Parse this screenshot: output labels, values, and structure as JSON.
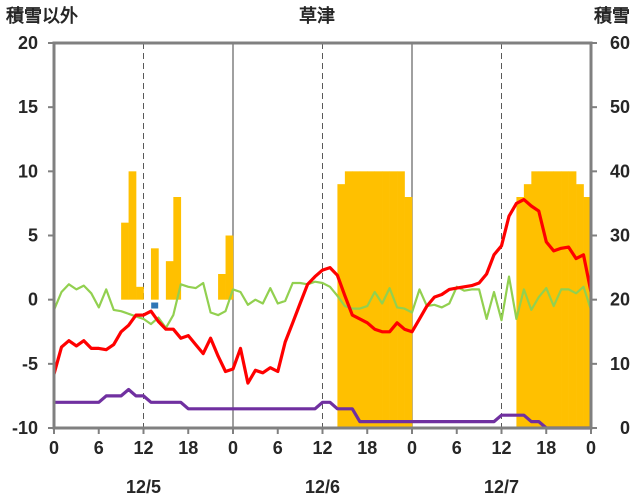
{
  "chart_data": {
    "type": "bar+line",
    "title": "草津",
    "left_axis_label": "積雪以外",
    "right_axis_label": "積雪",
    "ylim_left": [
      -10,
      20
    ],
    "yticks_left": [
      "20",
      "15",
      "10",
      "5",
      "0",
      "-5",
      "-10"
    ],
    "ylim_right": [
      0,
      60
    ],
    "yticks_right": [
      "60",
      "50",
      "40",
      "30",
      "20",
      "10",
      "0"
    ],
    "xlim_hours": [
      0,
      72
    ],
    "xtick_labels": [
      "0",
      "6",
      "12",
      "18",
      "0",
      "6",
      "12",
      "18",
      "0",
      "6",
      "12",
      "18",
      "0"
    ],
    "day_labels": [
      "12/5",
      "12/6",
      "12/7"
    ],
    "grid": "dashed vertical at 12h; solid day separators",
    "colors": {
      "snow_depth_bars": "#ffc000",
      "red_series": "#ff0000",
      "green_series": "#92d050",
      "purple_series": "#7030a0",
      "blue_marker": "#2e75b6",
      "frame": "#808080"
    },
    "series": [
      {
        "type": "bar",
        "axis": "left",
        "hours": [
          9.5,
          10.5,
          11.5,
          13.5,
          14.5,
          15.5,
          16.5,
          22.5,
          23.5,
          24.5,
          25.5,
          26.5,
          27.5,
          28.5,
          29.5,
          30.5,
          31.5,
          32.5,
          33.5,
          34.5,
          35.5,
          36.5,
          37.5,
          38.5,
          39.5,
          40.5,
          41.5,
          42.5,
          43.5,
          44.5,
          45.5,
          46.5,
          47.5,
          48.5,
          49.5,
          50.5,
          51.5,
          52.5,
          53.5,
          54.5,
          55.5,
          56.5,
          57.5,
          58.5,
          59.5,
          60.5,
          61.5,
          62.5,
          63.5,
          64.5,
          65.5,
          66.5,
          67.5
        ],
        "values": [
          6,
          10,
          1,
          4,
          0,
          3,
          8,
          2,
          5,
          0,
          0,
          0,
          0,
          0,
          0,
          0,
          0,
          0,
          0,
          0,
          0,
          0,
          0,
          0,
          0,
          0,
          0,
          0,
          0,
          0,
          0,
          0,
          0,
          0,
          0,
          0,
          0,
          0,
          0,
          0,
          0,
          0,
          0,
          0,
          0,
          0,
          0,
          0,
          0,
          0,
          0,
          0,
          0
        ]
      },
      {
        "type": "bar",
        "axis": "right",
        "hours": [
          38.5,
          39.5,
          40.5,
          41.5,
          42.5,
          43.5,
          44.5,
          45.5,
          46.5,
          47.5,
          62.5,
          63.5,
          64.5,
          65.5,
          66.5,
          67.5,
          68.5,
          69.5,
          70.5,
          71.5
        ],
        "values": [
          38,
          40,
          40,
          40,
          40,
          40,
          40,
          40,
          40,
          36,
          36,
          38,
          40,
          40,
          40,
          40,
          40,
          40,
          38,
          36
        ]
      },
      {
        "type": "line",
        "color": "red",
        "hours": [
          0,
          1,
          2,
          3,
          4,
          5,
          6,
          7,
          8,
          9,
          10,
          11,
          12,
          13,
          14,
          15,
          16,
          17,
          18,
          19,
          20,
          21,
          22,
          23,
          24,
          25,
          26,
          27,
          28,
          29,
          30,
          31,
          32,
          33,
          34,
          35,
          36,
          37,
          38,
          39,
          40,
          41,
          42,
          43,
          44,
          45,
          46,
          47,
          48,
          49,
          50,
          51,
          52,
          53,
          54,
          55,
          56,
          57,
          58,
          59,
          60,
          61,
          62,
          63,
          64,
          65,
          66,
          67,
          68,
          69,
          70,
          71,
          72
        ],
        "values": [
          -5.8,
          -3.7,
          -3.2,
          -3.6,
          -3.2,
          -3.8,
          -3.8,
          -3.9,
          -3.5,
          -2.5,
          -2.0,
          -1.2,
          -1.2,
          -0.9,
          -1.7,
          -2.3,
          -2.3,
          -3.0,
          -2.8,
          -3.5,
          -4.2,
          -3.0,
          -4.4,
          -5.6,
          -5.4,
          -3.8,
          -6.5,
          -5.5,
          -5.7,
          -5.3,
          -5.6,
          -3.3,
          -1.8,
          -0.3,
          1.2,
          1.8,
          2.3,
          2.5,
          1.9,
          0.3,
          -1.2,
          -1.5,
          -1.8,
          -2.3,
          -2.5,
          -2.5,
          -1.8,
          -2.3,
          -2.5,
          -1.5,
          -0.5,
          0.2,
          0.4,
          0.8,
          0.9,
          1.0,
          1.1,
          1.3,
          2.0,
          3.5,
          4.2,
          6.5,
          7.5,
          7.8,
          7.3,
          6.9,
          4.5,
          3.8,
          4.0,
          4.1,
          3.2,
          3.5,
          0.6
        ]
      },
      {
        "type": "line",
        "color": "green",
        "hours": [
          0,
          1,
          2,
          3,
          4,
          5,
          6,
          7,
          8,
          9,
          10,
          11,
          12,
          13,
          14,
          15,
          16,
          17,
          18,
          19,
          20,
          21,
          22,
          23,
          24,
          25,
          26,
          27,
          28,
          29,
          30,
          31,
          32,
          33,
          34,
          35,
          36,
          37,
          38,
          39,
          40,
          41,
          42,
          43,
          44,
          45,
          46,
          47,
          48,
          49,
          50,
          51,
          52,
          53,
          54,
          55,
          56,
          57,
          58,
          59,
          60,
          61,
          62,
          63,
          64,
          65,
          66,
          67,
          68,
          69,
          70,
          71,
          72
        ],
        "values": [
          -0.8,
          0.6,
          1.2,
          0.8,
          1.1,
          0.5,
          -0.6,
          0.8,
          -0.8,
          -0.9,
          -1.1,
          -1.3,
          -1.5,
          -1.9,
          -1.4,
          -2.2,
          -1.2,
          1.2,
          1.0,
          0.9,
          1.3,
          -1.0,
          -1.2,
          -0.9,
          0.8,
          0.6,
          -0.4,
          0.0,
          -0.3,
          0.9,
          -0.3,
          -0.1,
          1.3,
          1.3,
          1.2,
          1.4,
          1.3,
          1.0,
          0.3,
          -0.5,
          -0.7,
          -0.7,
          -0.5,
          0.6,
          -0.3,
          0.9,
          -0.6,
          -0.7,
          -1.0,
          0.8,
          -0.5,
          -0.4,
          -0.6,
          -0.3,
          1.0,
          0.7,
          0.8,
          0.8,
          -1.5,
          0.6,
          -1.6,
          1.8,
          -1.5,
          0.8,
          -0.8,
          0.2,
          0.9,
          -0.5,
          0.8,
          0.8,
          0.5,
          1.0,
          -0.8
        ]
      },
      {
        "type": "line",
        "color": "purple",
        "hours": [
          0,
          1,
          2,
          3,
          4,
          5,
          6,
          7,
          8,
          9,
          10,
          11,
          12,
          13,
          14,
          15,
          16,
          17,
          18,
          19,
          20,
          21,
          22,
          23,
          24,
          25,
          26,
          27,
          28,
          29,
          30,
          31,
          32,
          33,
          34,
          35,
          36,
          37,
          38,
          39,
          40,
          41,
          42,
          43,
          44,
          45,
          46,
          47,
          48,
          49,
          50,
          51,
          52,
          53,
          54,
          55,
          56,
          57,
          58,
          59,
          60,
          61,
          62,
          63,
          64,
          65,
          66,
          67,
          68,
          69,
          70,
          71,
          72
        ],
        "values": [
          -8.0,
          -8.0,
          -8.0,
          -8.0,
          -8.0,
          -8.0,
          -8.0,
          -7.5,
          -7.5,
          -7.5,
          -7.0,
          -7.5,
          -7.5,
          -8.0,
          -8.0,
          -8.0,
          -8.0,
          -8.0,
          -8.5,
          -8.5,
          -8.5,
          -8.5,
          -8.5,
          -8.5,
          -8.5,
          -8.5,
          -8.5,
          -8.5,
          -8.5,
          -8.5,
          -8.5,
          -8.5,
          -8.5,
          -8.5,
          -8.5,
          -8.5,
          -8.0,
          -8.0,
          -8.5,
          -8.5,
          -8.5,
          -9.5,
          -9.5,
          -9.5,
          -9.5,
          -9.5,
          -9.5,
          -9.5,
          -9.5,
          -9.5,
          -9.5,
          -9.5,
          -9.5,
          -9.5,
          -9.5,
          -9.5,
          -9.5,
          -9.5,
          -9.5,
          -9.5,
          -9.0,
          -9.0,
          -9.0,
          -9.0,
          -9.5,
          -9.5,
          -10.0,
          -10.0,
          -10.0,
          -10.0,
          -10.0,
          -10.0,
          -10.0
        ]
      },
      {
        "type": "marker",
        "color": "blue",
        "hours": [
          13.5
        ],
        "values": [
          -0.3
        ]
      }
    ]
  }
}
